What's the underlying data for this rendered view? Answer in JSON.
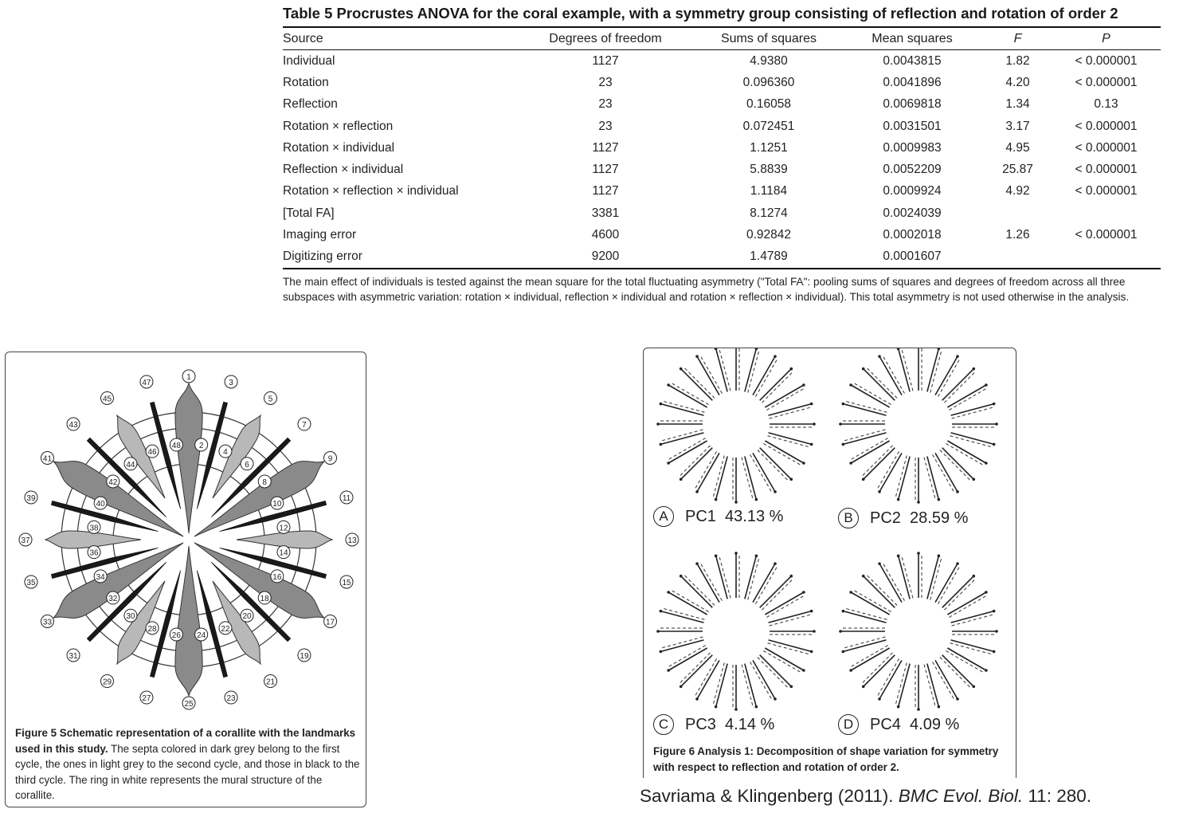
{
  "table": {
    "title": "Table 5 Procrustes ANOVA for the coral example, with a symmetry group consisting of reflection and rotation of order 2",
    "headers": [
      "Source",
      "Degrees of freedom",
      "Sums of squares",
      "Mean squares",
      "F",
      "P"
    ],
    "rows": [
      [
        "Individual",
        "1127",
        "4.9380",
        "0.0043815",
        "1.82",
        "< 0.000001"
      ],
      [
        "Rotation",
        "23",
        "0.096360",
        "0.0041896",
        "4.20",
        "< 0.000001"
      ],
      [
        "Reflection",
        "23",
        "0.16058",
        "0.0069818",
        "1.34",
        "0.13"
      ],
      [
        "Rotation × reflection",
        "23",
        "0.072451",
        "0.0031501",
        "3.17",
        "< 0.000001"
      ],
      [
        "Rotation × individual",
        "1127",
        "1.1251",
        "0.0009983",
        "4.95",
        "< 0.000001"
      ],
      [
        "Reflection × individual",
        "1127",
        "5.8839",
        "0.0052209",
        "25.87",
        "< 0.000001"
      ],
      [
        "Rotation × reflection × individual",
        "1127",
        "1.1184",
        "0.0009924",
        "4.92",
        "< 0.000001"
      ],
      [
        "[Total FA]",
        "3381",
        "8.1274",
        "0.0024039",
        "",
        ""
      ],
      [
        "Imaging error",
        "4600",
        "0.92842",
        "0.0002018",
        "1.26",
        "< 0.000001"
      ],
      [
        "Digitizing error",
        "9200",
        "1.4789",
        "0.0001607",
        "",
        ""
      ]
    ],
    "footnote": "The main effect of individuals is tested against the mean square for the total fluctuating asymmetry (\"Total FA\": pooling sums of squares and degrees of freedom across all three subspaces with asymmetric variation: rotation × individual, reflection × individual and rotation × reflection × individual). This total asymmetry is not used otherwise in the analysis."
  },
  "figure5": {
    "caption_bold": "Figure 5 Schematic representation of a corallite with the landmarks used in this study.",
    "caption_rest": " The septa colored in dark grey belong to the first cycle, the ones in light grey to the second cycle, and those in black to the third cycle. The ring in white represents the mural structure of the corallite.",
    "landmark_labels": [
      "1",
      "2",
      "3",
      "4",
      "5",
      "6",
      "7",
      "8",
      "9",
      "10",
      "11",
      "12",
      "13",
      "14",
      "15",
      "16",
      "17",
      "18",
      "19",
      "20",
      "21",
      "22",
      "23",
      "24",
      "25",
      "26",
      "27",
      "28",
      "29",
      "30",
      "31",
      "32",
      "33",
      "34",
      "35",
      "36",
      "37",
      "38",
      "39",
      "40",
      "41",
      "42",
      "43",
      "44",
      "45",
      "46",
      "47",
      "48"
    ],
    "colors": {
      "first_cycle": "#8a8a8a",
      "second_cycle": "#b8b8b8",
      "third_cycle": "#1a1a1a"
    }
  },
  "figure6": {
    "panels": [
      {
        "letter": "A",
        "label": "PC1",
        "percent": "43.13 %"
      },
      {
        "letter": "B",
        "label": "PC2",
        "percent": "28.59 %"
      },
      {
        "letter": "C",
        "label": "PC3",
        "percent": "4.14 %"
      },
      {
        "letter": "D",
        "label": "PC4",
        "percent": "4.09 %"
      }
    ],
    "caption": "Figure 6 Analysis 1: Decomposition of shape variation for symmetry with respect to reflection and rotation of order 2."
  },
  "citation": {
    "authors": "Savriama & Klingenberg (2011).",
    "journal": "BMC Evol. Biol.",
    "ref": "11: 280."
  }
}
